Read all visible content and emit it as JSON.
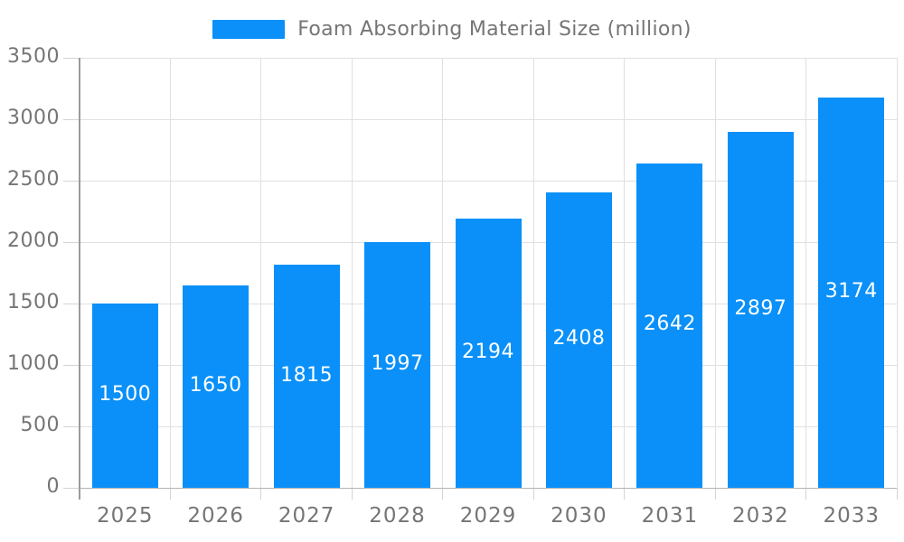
{
  "chart_data": {
    "type": "bar",
    "title": "Foam Absorbing Material Size (million)",
    "legend": [
      "Foam Absorbing Material Size (million)"
    ],
    "legend_position": "top-center",
    "categories": [
      "2025",
      "2026",
      "2027",
      "2028",
      "2029",
      "2030",
      "2031",
      "2032",
      "2033"
    ],
    "series": [
      {
        "name": "Foam Absorbing Material Size (million)",
        "values": [
          1500,
          1650,
          1815,
          1997,
          2194,
          2408,
          2642,
          2897,
          3174
        ]
      }
    ],
    "xlabel": "",
    "ylabel": "",
    "ylim": [
      0,
      3500
    ],
    "yticks": [
      0,
      500,
      1000,
      1500,
      2000,
      2500,
      3000,
      3500
    ],
    "grid": true,
    "value_labels_inside_bars": true,
    "colors": {
      "bar": "#0a90f8",
      "bar_label_text": "#ffffff",
      "axis_line": "#9a9a9a",
      "baseline": "#b3b3b3",
      "gridline": "#e0e0e0",
      "tick_mark": "#d4d4d4",
      "tick_text": "#757575",
      "legend_text": "#757575"
    }
  }
}
